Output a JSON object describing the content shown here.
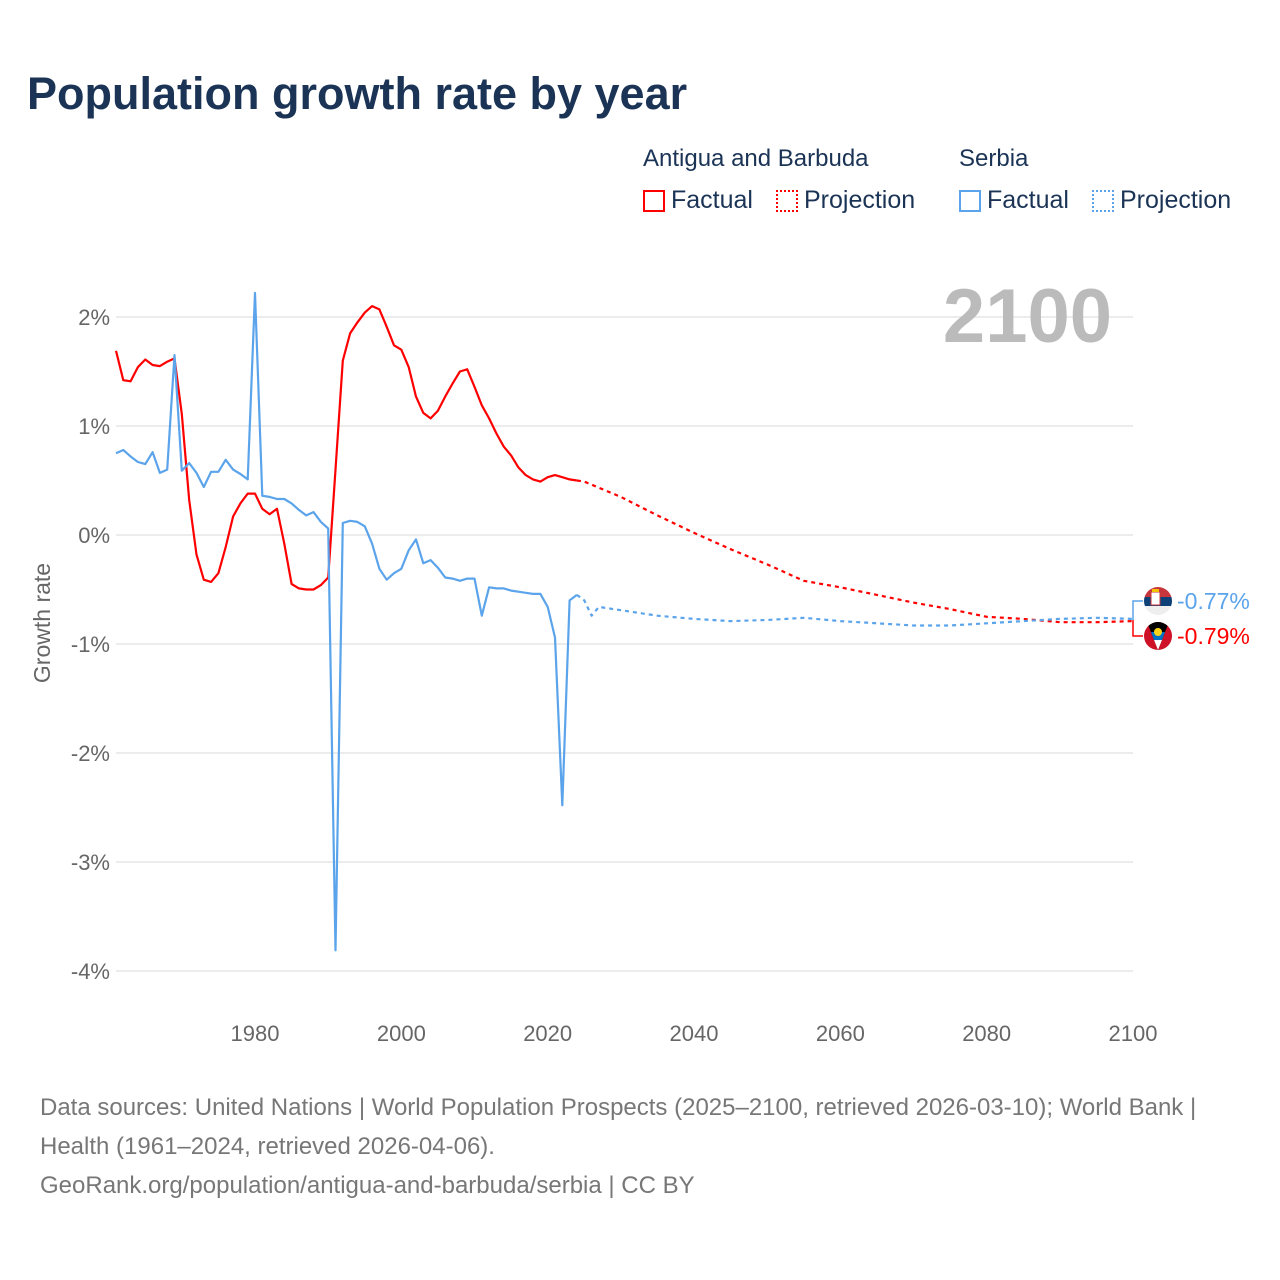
{
  "title": "Population growth rate by year",
  "legend": {
    "groups": [
      {
        "name": "Antigua and Barbuda",
        "color": "#ff0000",
        "factual": "Factual",
        "projection": "Projection"
      },
      {
        "name": "Serbia",
        "color": "#5ba4eb",
        "factual": "Factual",
        "projection": "Projection"
      }
    ]
  },
  "year_label": "2100",
  "end_labels": [
    {
      "country": "Serbia",
      "flag_icon": "serbia-flag-icon",
      "value": "-0.77%"
    },
    {
      "country": "Antigua and Barbuda",
      "flag_icon": "antigua-flag-icon",
      "value": "-0.79%"
    }
  ],
  "sources": "Data sources: United Nations | World Population Prospects (2025–2100, retrieved 2026-03-10); World Bank | Health (1961–2024, retrieved 2026-04-06).",
  "attribution": "GeoRank.org/population/antigua-and-barbuda/serbia | CC BY",
  "chart_data": {
    "type": "line",
    "title": "Population growth rate by year",
    "xlabel": "",
    "ylabel": "Growth rate",
    "xlim": [
      1961,
      2100
    ],
    "ylim": [
      -4,
      2
    ],
    "x_ticks": [
      1980,
      2000,
      2020,
      2040,
      2060,
      2080,
      2100
    ],
    "y_ticks": [
      2,
      1,
      0,
      -1,
      -2,
      -3,
      -4
    ],
    "y_tick_labels": [
      "2%",
      "1%",
      "0%",
      "-1%",
      "-2%",
      "-3%",
      "-4%"
    ],
    "grid": true,
    "legend_position": "top-right",
    "series": [
      {
        "name": "Antigua and Barbuda",
        "kind": "Factual",
        "color": "#ff0000",
        "x": [
          1961,
          1962,
          1963,
          1964,
          1965,
          1966,
          1967,
          1968,
          1969,
          1970,
          1971,
          1972,
          1973,
          1974,
          1975,
          1976,
          1977,
          1978,
          1979,
          1980,
          1981,
          1982,
          1983,
          1984,
          1985,
          1986,
          1987,
          1988,
          1989,
          1990,
          1991,
          1992,
          1993,
          1994,
          1995,
          1996,
          1997,
          1998,
          1999,
          2000,
          2001,
          2002,
          2003,
          2004,
          2005,
          2006,
          2007,
          2008,
          2009,
          2010,
          2011,
          2012,
          2013,
          2014,
          2015,
          2016,
          2017,
          2018,
          2019,
          2020,
          2021,
          2022,
          2023,
          2024
        ],
        "values": [
          1.69,
          1.42,
          1.41,
          1.54,
          1.61,
          1.56,
          1.55,
          1.59,
          1.62,
          1.11,
          0.32,
          -0.18,
          -0.41,
          -0.43,
          -0.35,
          -0.11,
          0.17,
          0.29,
          0.38,
          0.38,
          0.24,
          0.19,
          0.24,
          -0.08,
          -0.45,
          -0.49,
          -0.5,
          -0.5,
          -0.46,
          -0.39,
          0.6,
          1.6,
          1.85,
          1.95,
          2.04,
          2.1,
          2.07,
          1.91,
          1.74,
          1.7,
          1.54,
          1.27,
          1.12,
          1.07,
          1.14,
          1.27,
          1.39,
          1.5,
          1.52,
          1.36,
          1.19,
          1.07,
          0.93,
          0.81,
          0.73,
          0.62,
          0.55,
          0.51,
          0.49,
          0.53,
          0.55,
          0.53,
          0.51,
          0.5
        ]
      },
      {
        "name": "Antigua and Barbuda",
        "kind": "Projection",
        "color": "#ff0000",
        "x": [
          2024,
          2025,
          2030,
          2035,
          2040,
          2045,
          2050,
          2055,
          2060,
          2065,
          2070,
          2075,
          2080,
          2085,
          2090,
          2095,
          2100
        ],
        "values": [
          0.5,
          0.49,
          0.35,
          0.18,
          0.02,
          -0.13,
          -0.27,
          -0.42,
          -0.48,
          -0.55,
          -0.62,
          -0.68,
          -0.75,
          -0.77,
          -0.8,
          -0.8,
          -0.79
        ]
      },
      {
        "name": "Serbia",
        "kind": "Factual",
        "color": "#5ba4eb",
        "x": [
          1961,
          1962,
          1963,
          1964,
          1965,
          1966,
          1967,
          1968,
          1969,
          1970,
          1971,
          1972,
          1973,
          1974,
          1975,
          1976,
          1977,
          1978,
          1979,
          1980,
          1981,
          1982,
          1983,
          1984,
          1985,
          1986,
          1987,
          1988,
          1989,
          1990,
          1991,
          1992,
          1993,
          1994,
          1995,
          1996,
          1997,
          1998,
          1999,
          2000,
          2001,
          2002,
          2003,
          2004,
          2005,
          2006,
          2007,
          2008,
          2009,
          2010,
          2011,
          2012,
          2013,
          2014,
          2015,
          2016,
          2017,
          2018,
          2019,
          2020,
          2021,
          2022,
          2023,
          2024
        ],
        "values": [
          0.75,
          0.78,
          0.72,
          0.67,
          0.65,
          0.76,
          0.57,
          0.6,
          1.65,
          0.59,
          0.66,
          0.57,
          0.44,
          0.58,
          0.58,
          0.69,
          0.6,
          0.56,
          0.51,
          2.22,
          0.36,
          0.35,
          0.33,
          0.33,
          0.29,
          0.23,
          0.18,
          0.21,
          0.12,
          0.06,
          -3.81,
          0.11,
          0.13,
          0.12,
          0.08,
          -0.08,
          -0.31,
          -0.41,
          -0.35,
          -0.31,
          -0.14,
          -0.04,
          -0.26,
          -0.23,
          -0.3,
          -0.39,
          -0.4,
          -0.42,
          -0.4,
          -0.4,
          -0.74,
          -0.48,
          -0.49,
          -0.49,
          -0.51,
          -0.52,
          -0.53,
          -0.54,
          -0.54,
          -0.66,
          -0.94,
          -2.48,
          -0.6,
          -0.55
        ]
      },
      {
        "name": "Serbia",
        "kind": "Projection",
        "color": "#5ba4eb",
        "x": [
          2024,
          2025,
          2026,
          2027,
          2030,
          2035,
          2040,
          2045,
          2050,
          2055,
          2060,
          2065,
          2070,
          2075,
          2080,
          2085,
          2090,
          2095,
          2100
        ],
        "values": [
          -0.55,
          -0.6,
          -0.74,
          -0.66,
          -0.69,
          -0.74,
          -0.77,
          -0.79,
          -0.78,
          -0.76,
          -0.79,
          -0.81,
          -0.83,
          -0.83,
          -0.81,
          -0.79,
          -0.77,
          -0.76,
          -0.77
        ]
      }
    ]
  }
}
